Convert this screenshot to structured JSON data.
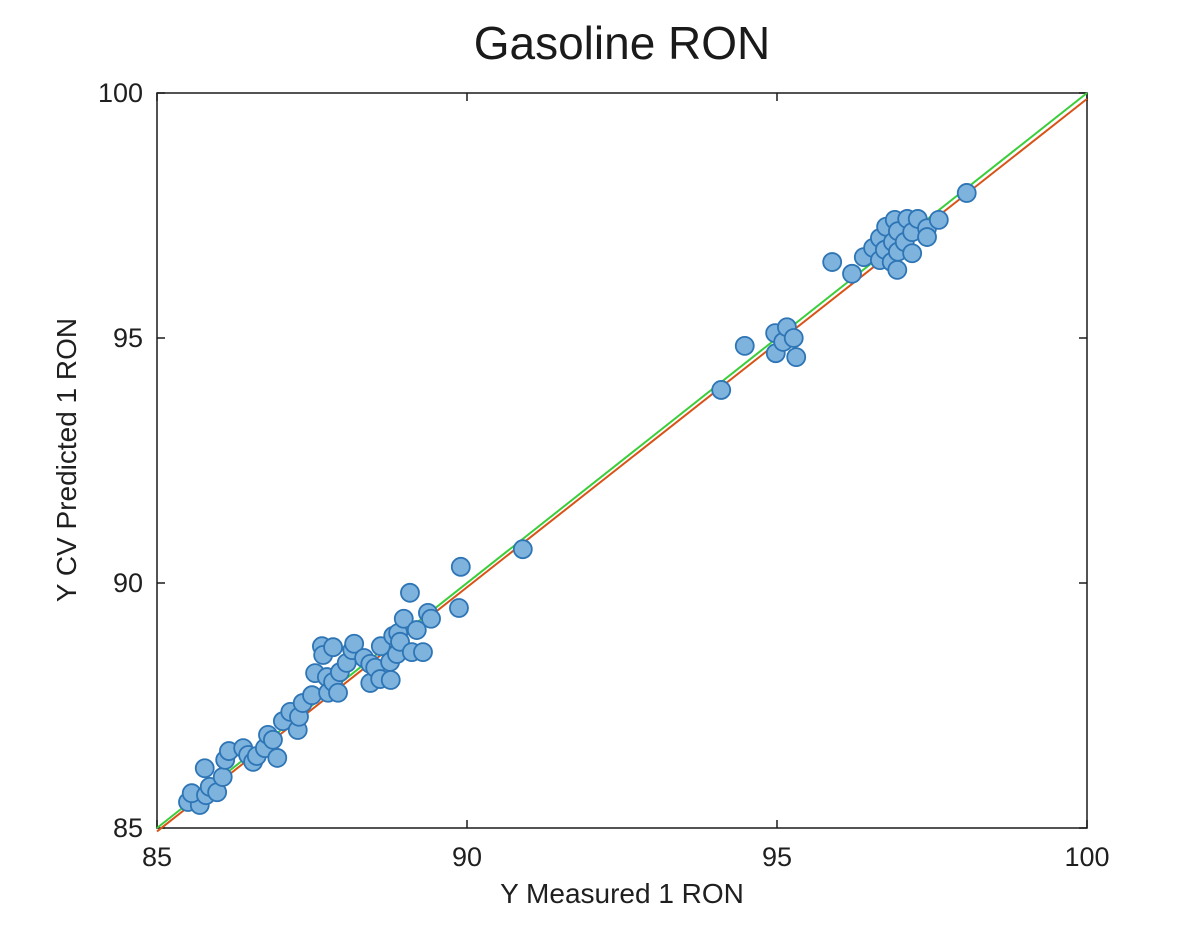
{
  "figure": {
    "title": "Gasoline RON"
  },
  "chart_data": {
    "type": "scatter",
    "title": "Gasoline RON",
    "xlabel": "Y Measured 1 RON",
    "ylabel": "Y CV Predicted 1 RON",
    "xlim": [
      85,
      100
    ],
    "ylim": [
      85,
      100
    ],
    "x_ticks": [
      "85",
      "90",
      "95",
      "100"
    ],
    "y_ticks": [
      "85",
      "90",
      "95",
      "100"
    ],
    "grid": false,
    "legend": "none",
    "axis_color": "#1a1a1a",
    "marker": {
      "shape": "circle",
      "fill": "#7EB3DE",
      "stroke": "#2E75B6",
      "radius": 9,
      "stroke_width": 1.8
    },
    "lines": [
      {
        "name": "fit-line",
        "color": "#D95319",
        "width": 2,
        "points": [
          [
            85,
            84.93
          ],
          [
            100,
            99.88
          ]
        ]
      },
      {
        "name": "identity-line",
        "color": "#3BCE3B",
        "width": 2,
        "points": [
          [
            85,
            85
          ],
          [
            100,
            100
          ]
        ]
      }
    ],
    "series": [
      {
        "name": "CV predicted vs measured",
        "points": [
          [
            85.5,
            85.53
          ],
          [
            85.69,
            85.47
          ],
          [
            85.56,
            85.71
          ],
          [
            85.79,
            85.67
          ],
          [
            85.77,
            86.22
          ],
          [
            85.85,
            85.84
          ],
          [
            85.97,
            85.73
          ],
          [
            86.06,
            86.04
          ],
          [
            86.1,
            86.39
          ],
          [
            86.16,
            86.57
          ],
          [
            86.39,
            86.63
          ],
          [
            86.47,
            86.49
          ],
          [
            86.55,
            86.35
          ],
          [
            86.61,
            86.47
          ],
          [
            86.74,
            86.63
          ],
          [
            86.79,
            86.9
          ],
          [
            86.87,
            86.8
          ],
          [
            86.94,
            86.43
          ],
          [
            87.03,
            87.18
          ],
          [
            87.15,
            87.37
          ],
          [
            87.27,
            87.0
          ],
          [
            87.29,
            87.27
          ],
          [
            87.35,
            87.55
          ],
          [
            87.5,
            87.71
          ],
          [
            87.55,
            88.16
          ],
          [
            87.66,
            88.71
          ],
          [
            87.68,
            88.53
          ],
          [
            87.74,
            88.08
          ],
          [
            87.76,
            87.76
          ],
          [
            87.84,
            88.69
          ],
          [
            87.84,
            87.98
          ],
          [
            87.92,
            87.76
          ],
          [
            87.95,
            88.18
          ],
          [
            88.06,
            88.37
          ],
          [
            88.15,
            88.63
          ],
          [
            88.18,
            88.76
          ],
          [
            88.34,
            88.47
          ],
          [
            88.44,
            88.35
          ],
          [
            88.44,
            87.96
          ],
          [
            88.52,
            88.27
          ],
          [
            88.6,
            88.04
          ],
          [
            88.61,
            88.71
          ],
          [
            88.76,
            88.39
          ],
          [
            88.77,
            88.02
          ],
          [
            88.87,
            88.55
          ],
          [
            88.81,
            88.92
          ],
          [
            88.89,
            88.98
          ],
          [
            88.92,
            88.8
          ],
          [
            88.98,
            89.27
          ],
          [
            89.08,
            89.8
          ],
          [
            89.11,
            88.59
          ],
          [
            89.19,
            89.04
          ],
          [
            89.29,
            88.59
          ],
          [
            89.37,
            89.39
          ],
          [
            89.42,
            89.27
          ],
          [
            89.87,
            89.49
          ],
          [
            89.9,
            90.33
          ],
          [
            90.9,
            90.69
          ],
          [
            94.1,
            93.94
          ],
          [
            94.48,
            94.84
          ],
          [
            94.97,
            95.1
          ],
          [
            94.98,
            94.69
          ],
          [
            95.1,
            94.92
          ],
          [
            95.16,
            95.22
          ],
          [
            95.27,
            95.0
          ],
          [
            95.31,
            94.61
          ],
          [
            95.89,
            96.55
          ],
          [
            96.21,
            96.31
          ],
          [
            96.4,
            96.65
          ],
          [
            96.55,
            96.84
          ],
          [
            96.66,
            97.04
          ],
          [
            96.66,
            96.59
          ],
          [
            96.74,
            96.8
          ],
          [
            96.76,
            97.27
          ],
          [
            96.85,
            96.55
          ],
          [
            96.87,
            96.96
          ],
          [
            96.9,
            97.41
          ],
          [
            96.94,
            96.39
          ],
          [
            96.95,
            97.18
          ],
          [
            96.95,
            96.76
          ],
          [
            97.06,
            96.96
          ],
          [
            97.1,
            97.43
          ],
          [
            97.18,
            97.16
          ],
          [
            97.18,
            96.73
          ],
          [
            97.27,
            97.43
          ],
          [
            97.42,
            97.24
          ],
          [
            97.42,
            97.06
          ],
          [
            97.61,
            97.41
          ],
          [
            98.06,
            97.96
          ]
        ]
      }
    ]
  }
}
